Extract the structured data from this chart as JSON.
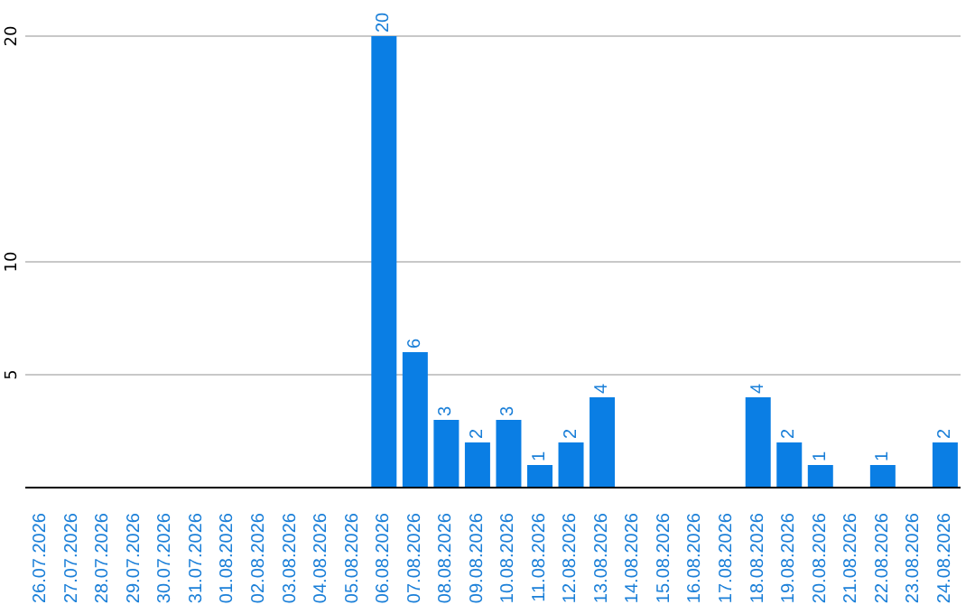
{
  "chart_data": {
    "type": "bar",
    "categories": [
      "26.07.2026",
      "27.07.2026",
      "28.07.2026",
      "29.07.2026",
      "30.07.2026",
      "31.07.2026",
      "01.08.2026",
      "02.08.2026",
      "03.08.2026",
      "04.08.2026",
      "05.08.2026",
      "06.08.2026",
      "07.08.2026",
      "08.08.2026",
      "09.08.2026",
      "10.08.2026",
      "11.08.2026",
      "12.08.2026",
      "13.08.2026",
      "14.08.2026",
      "15.08.2026",
      "16.08.2026",
      "17.08.2026",
      "18.08.2026",
      "19.08.2026",
      "20.08.2026",
      "21.08.2026",
      "22.08.2026",
      "23.08.2026",
      "24.08.2026"
    ],
    "values": [
      0,
      0,
      0,
      0,
      0,
      0,
      0,
      0,
      0,
      0,
      0,
      20,
      6,
      3,
      2,
      3,
      1,
      2,
      4,
      0,
      0,
      0,
      0,
      4,
      2,
      1,
      0,
      1,
      0,
      2
    ],
    "value_labels": [
      null,
      null,
      null,
      null,
      null,
      null,
      null,
      null,
      null,
      null,
      null,
      "20",
      "6",
      "3",
      "2",
      "3",
      "1",
      "2",
      "4",
      null,
      null,
      null,
      null,
      "4",
      "2",
      "1",
      null,
      "1",
      null,
      "2"
    ],
    "color": "#0a7ee4",
    "ylim": [
      0,
      20
    ],
    "yticks": [
      5,
      10,
      20
    ],
    "grid": "y"
  }
}
